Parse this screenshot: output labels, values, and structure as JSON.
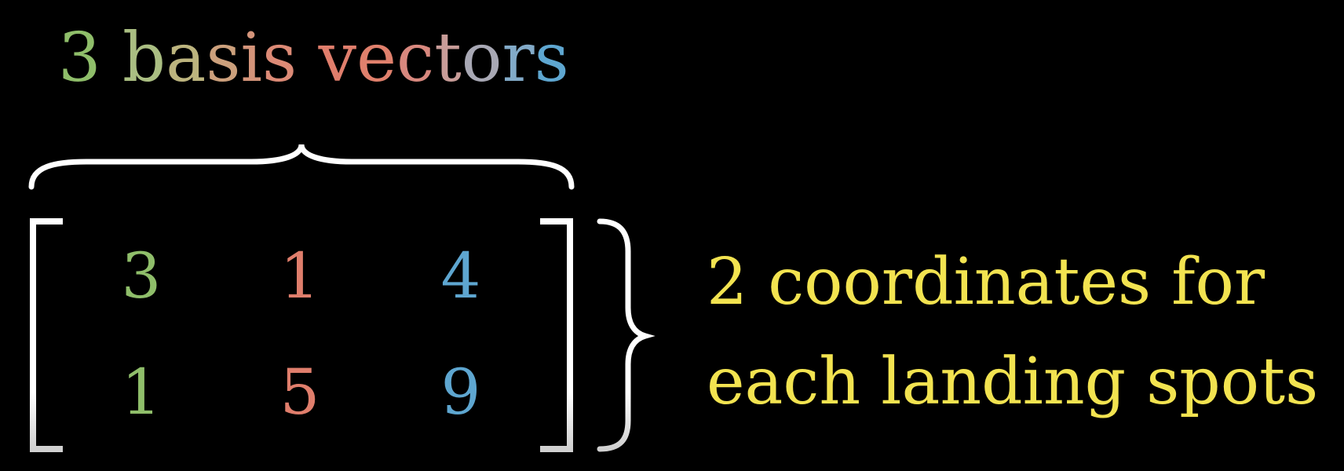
{
  "title": {
    "segments": [
      {
        "text": "3",
        "color": "#8fbe6a"
      },
      {
        "text": " b",
        "color": "#aabe82"
      },
      {
        "text": "a",
        "color": "#bcb47e"
      },
      {
        "text": "s",
        "color": "#cca07c"
      },
      {
        "text": "i",
        "color": "#d4947a"
      },
      {
        "text": "s",
        "color": "#dc8a76"
      },
      {
        "text": " v",
        "color": "#e07e6c"
      },
      {
        "text": "e",
        "color": "#e0806c"
      },
      {
        "text": "c",
        "color": "#d8887e"
      },
      {
        "text": "t",
        "color": "#c89c98"
      },
      {
        "text": "o",
        "color": "#a8a8b4"
      },
      {
        "text": "r",
        "color": "#82aac8"
      },
      {
        "text": "s",
        "color": "#5ea6d0"
      }
    ]
  },
  "matrix": {
    "rows": [
      [
        "3",
        "1",
        "4"
      ],
      [
        "1",
        "5",
        "9"
      ]
    ],
    "column_colors": [
      "#8fbe6a",
      "#e07e6c",
      "#5ea6d0"
    ]
  },
  "caption": {
    "line1": "2 coordinates for",
    "line2": "each landing spots",
    "color": "#f2e350"
  }
}
